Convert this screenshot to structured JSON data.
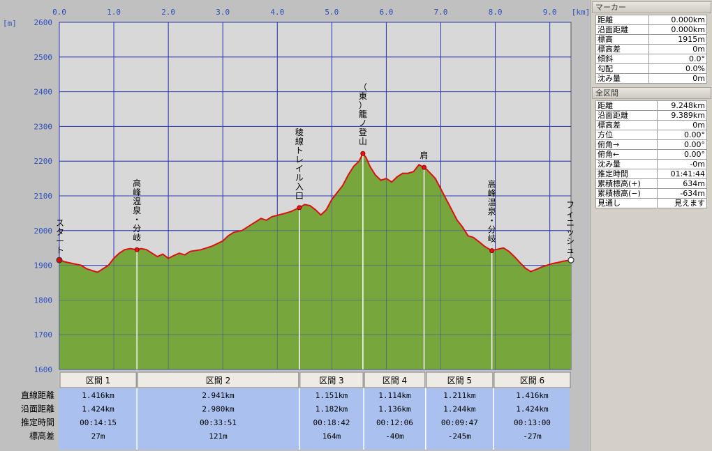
{
  "chart_data": {
    "type": "area",
    "title": "",
    "xlabel": "[km]",
    "ylabel": "[m]",
    "x_ticks": [
      "0.0",
      "1.0",
      "2.0",
      "3.0",
      "4.0",
      "5.0",
      "6.0",
      "7.0",
      "8.0",
      "9.0"
    ],
    "y_ticks": [
      "1600",
      "1700",
      "1800",
      "1900",
      "2000",
      "2100",
      "2200",
      "2300",
      "2400",
      "2500",
      "2600"
    ],
    "xlim": [
      0,
      9.389
    ],
    "ylim": [
      1600,
      2600
    ],
    "grid": true,
    "colors": {
      "fill": "#76a63c",
      "line": "#dd1111",
      "plot_bg": "#d8d8d8",
      "grid": "#2b3bb0",
      "tick": "#2b4fc0"
    },
    "profile": [
      [
        0.0,
        1915
      ],
      [
        0.1,
        1910
      ],
      [
        0.25,
        1905
      ],
      [
        0.4,
        1900
      ],
      [
        0.5,
        1890
      ],
      [
        0.6,
        1885
      ],
      [
        0.7,
        1880
      ],
      [
        0.8,
        1890
      ],
      [
        0.9,
        1900
      ],
      [
        1.0,
        1920
      ],
      [
        1.1,
        1935
      ],
      [
        1.2,
        1945
      ],
      [
        1.3,
        1948
      ],
      [
        1.416,
        1945
      ],
      [
        1.5,
        1948
      ],
      [
        1.6,
        1945
      ],
      [
        1.7,
        1935
      ],
      [
        1.8,
        1925
      ],
      [
        1.9,
        1932
      ],
      [
        2.0,
        1920
      ],
      [
        2.1,
        1928
      ],
      [
        2.2,
        1935
      ],
      [
        2.3,
        1930
      ],
      [
        2.4,
        1940
      ],
      [
        2.6,
        1945
      ],
      [
        2.8,
        1955
      ],
      [
        3.0,
        1970
      ],
      [
        3.1,
        1985
      ],
      [
        3.2,
        1995
      ],
      [
        3.35,
        2000
      ],
      [
        3.5,
        2015
      ],
      [
        3.6,
        2025
      ],
      [
        3.7,
        2035
      ],
      [
        3.8,
        2030
      ],
      [
        3.9,
        2040
      ],
      [
        4.1,
        2048
      ],
      [
        4.25,
        2055
      ],
      [
        4.404,
        2066
      ],
      [
        4.5,
        2075
      ],
      [
        4.6,
        2072
      ],
      [
        4.7,
        2060
      ],
      [
        4.8,
        2045
      ],
      [
        4.9,
        2060
      ],
      [
        5.0,
        2090
      ],
      [
        5.1,
        2110
      ],
      [
        5.2,
        2130
      ],
      [
        5.3,
        2160
      ],
      [
        5.4,
        2185
      ],
      [
        5.5,
        2200
      ],
      [
        5.57,
        2222
      ],
      [
        5.63,
        2210
      ],
      [
        5.7,
        2185
      ],
      [
        5.8,
        2160
      ],
      [
        5.9,
        2145
      ],
      [
        6.0,
        2150
      ],
      [
        6.1,
        2140
      ],
      [
        6.2,
        2155
      ],
      [
        6.3,
        2165
      ],
      [
        6.4,
        2165
      ],
      [
        6.5,
        2170
      ],
      [
        6.6,
        2190
      ],
      [
        6.65,
        2185
      ],
      [
        6.693,
        2182
      ],
      [
        6.75,
        2175
      ],
      [
        6.9,
        2150
      ],
      [
        7.0,
        2120
      ],
      [
        7.1,
        2090
      ],
      [
        7.2,
        2060
      ],
      [
        7.3,
        2030
      ],
      [
        7.4,
        2010
      ],
      [
        7.5,
        1985
      ],
      [
        7.6,
        1980
      ],
      [
        7.7,
        1968
      ],
      [
        7.8,
        1955
      ],
      [
        7.937,
        1942
      ],
      [
        8.0,
        1945
      ],
      [
        8.15,
        1950
      ],
      [
        8.25,
        1940
      ],
      [
        8.35,
        1925
      ],
      [
        8.45,
        1908
      ],
      [
        8.55,
        1892
      ],
      [
        8.65,
        1882
      ],
      [
        8.75,
        1888
      ],
      [
        8.85,
        1895
      ],
      [
        8.95,
        1900
      ],
      [
        9.05,
        1905
      ],
      [
        9.15,
        1908
      ],
      [
        9.25,
        1912
      ],
      [
        9.389,
        1915
      ]
    ],
    "markers": [
      {
        "x": 0.0,
        "y": 1915,
        "label": "スタート",
        "style": "start"
      },
      {
        "x": 1.424,
        "y": 1945,
        "label": "高峰温泉・分岐",
        "style": "waypoint"
      },
      {
        "x": 4.404,
        "y": 2066,
        "label": "稜線トレイル入口",
        "style": "waypoint"
      },
      {
        "x": 5.57,
        "y": 2222,
        "label": "（東）籠ノ登山",
        "style": "waypoint"
      },
      {
        "x": 6.693,
        "y": 2182,
        "label": "肩",
        "style": "waypoint"
      },
      {
        "x": 7.937,
        "y": 1942,
        "label": "高峰温泉・分岐",
        "style": "waypoint"
      },
      {
        "x": 9.389,
        "y": 1915,
        "label": "フィニッシュ",
        "style": "finish"
      }
    ],
    "sections": [
      {
        "name": "区間 1",
        "start": 0.0,
        "end": 1.424,
        "straight": "1.416km",
        "surface": "1.424km",
        "time": "00:14:15",
        "elev": "27m"
      },
      {
        "name": "区間 2",
        "start": 1.424,
        "end": 4.404,
        "straight": "2.941km",
        "surface": "2.980km",
        "time": "00:33:51",
        "elev": "121m"
      },
      {
        "name": "区間 3",
        "start": 4.404,
        "end": 5.586,
        "straight": "1.151km",
        "surface": "1.182km",
        "time": "00:18:42",
        "elev": "164m"
      },
      {
        "name": "区間 4",
        "start": 5.586,
        "end": 6.722,
        "straight": "1.114km",
        "surface": "1.136km",
        "time": "00:12:06",
        "elev": "-40m"
      },
      {
        "name": "区間 5",
        "start": 6.722,
        "end": 7.966,
        "straight": "1.211km",
        "surface": "1.244km",
        "time": "00:09:47",
        "elev": "-245m"
      },
      {
        "name": "区間 6",
        "start": 7.966,
        "end": 9.389,
        "straight": "1.416km",
        "surface": "1.424km",
        "time": "00:13:00",
        "elev": "-27m"
      }
    ],
    "row_labels": [
      "直線距離",
      "沿面距離",
      "推定時間",
      "標高差"
    ]
  },
  "marker_panel": {
    "title": "マーカー",
    "rows": [
      {
        "label": "距離",
        "value": "0.000km"
      },
      {
        "label": "沿面距離",
        "value": "0.000km"
      },
      {
        "label": "標高",
        "value": "1915m"
      },
      {
        "label": "標高差",
        "value": "0m"
      },
      {
        "label": "傾斜",
        "value": "0.0°"
      },
      {
        "label": "勾配",
        "value": "0.0%"
      },
      {
        "label": "沈み量",
        "value": "0m"
      }
    ]
  },
  "total_panel": {
    "title": "全区間",
    "rows": [
      {
        "label": "距離",
        "value": "9.248km"
      },
      {
        "label": "沿面距離",
        "value": "9.389km"
      },
      {
        "label": "標高差",
        "value": "0m"
      },
      {
        "label": "方位",
        "value": "0.00°"
      },
      {
        "label": "俯角→",
        "value": "0.00°"
      },
      {
        "label": "俯角←",
        "value": "0.00°"
      },
      {
        "label": "沈み量",
        "value": "-0m"
      },
      {
        "label": "推定時間",
        "value": "01:41:44"
      },
      {
        "label": "累積標高(+)",
        "value": "634m"
      },
      {
        "label": "累積標高(−)",
        "value": "-634m"
      },
      {
        "label": "見通し",
        "value": "見えます"
      }
    ]
  }
}
